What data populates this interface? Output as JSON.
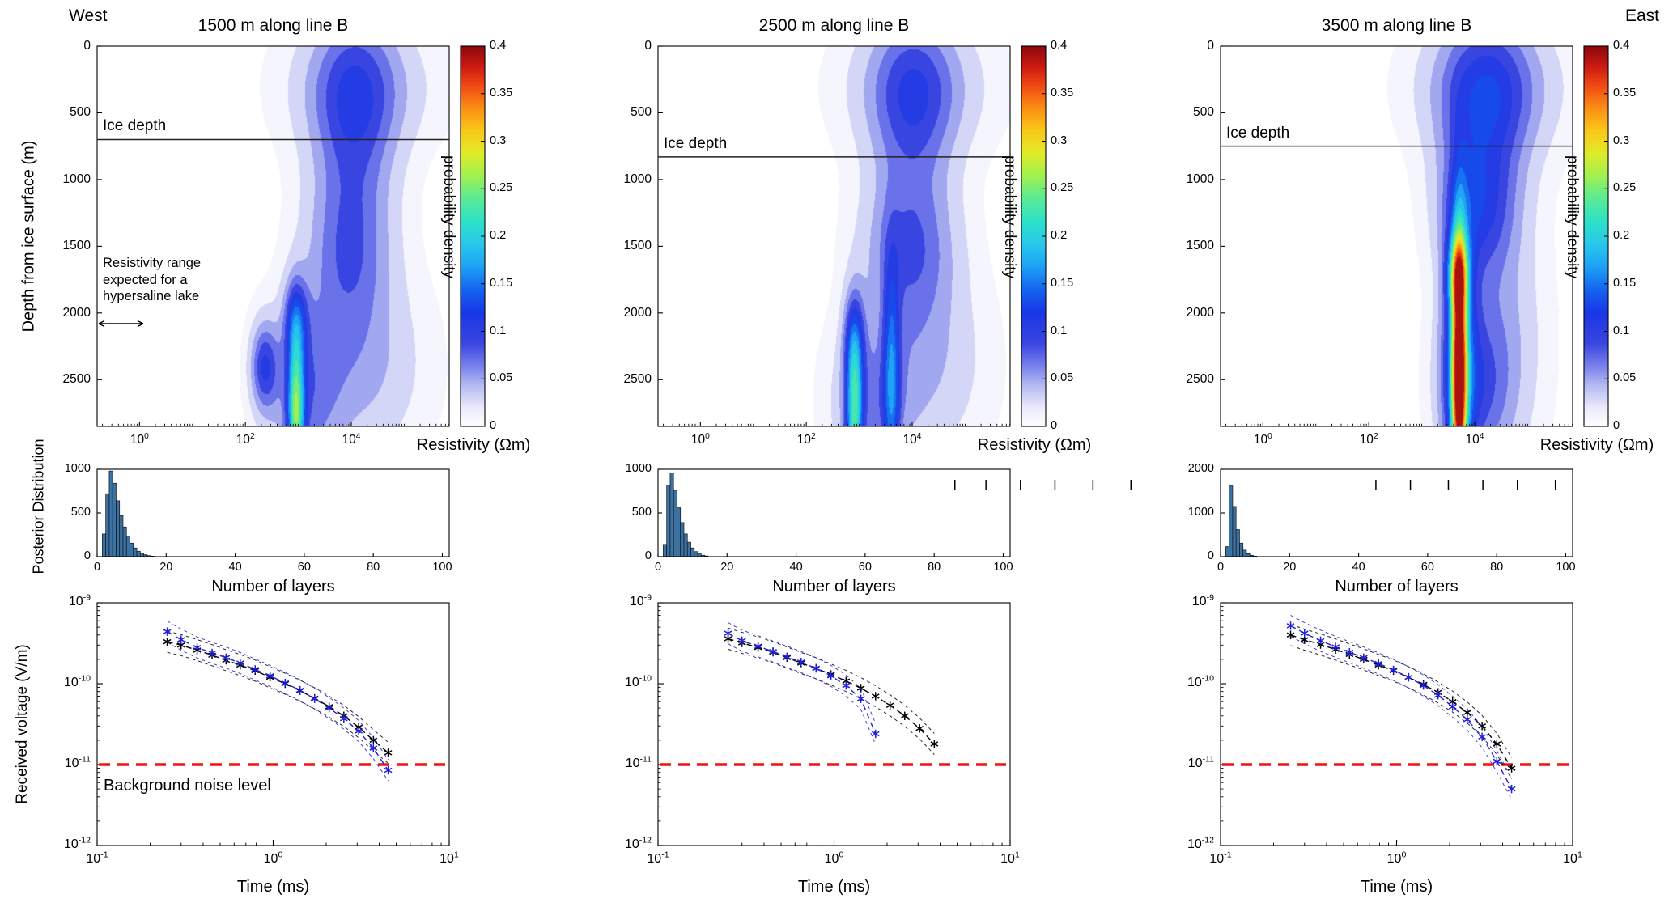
{
  "figure": {
    "west_label": "West",
    "east_label": "East"
  },
  "labels": {
    "depth_axis": "Depth from ice surface (m)",
    "posterior_axis": "Posterior Distribution",
    "voltage_axis": "Received voltage (V/m)",
    "resistivity_xlabel": "Resistivity (Ωm)",
    "colorbar_label": "probability density",
    "layers_xlabel": "Number of layers",
    "time_xlabel": "Time (ms)",
    "ice_label": "Ice depth",
    "noise_label": "Background noise level",
    "lake_annotation": "Resistivity range\nexpected for a\nhypersaline lake"
  },
  "colormap": {
    "max": 0.4,
    "stops": [
      {
        "t": 0.0,
        "c": "#ffffff"
      },
      {
        "t": 0.05,
        "c": "#ebebfa"
      },
      {
        "t": 0.11,
        "c": "#b4b9f2"
      },
      {
        "t": 0.16,
        "c": "#7880eb"
      },
      {
        "t": 0.22,
        "c": "#3a46e1"
      },
      {
        "t": 0.3,
        "c": "#1937e6"
      },
      {
        "t": 0.36,
        "c": "#1464f0"
      },
      {
        "t": 0.42,
        "c": "#1ea0f5"
      },
      {
        "t": 0.48,
        "c": "#28c8eb"
      },
      {
        "t": 0.54,
        "c": "#2de1c8"
      },
      {
        "t": 0.6,
        "c": "#5aeb96"
      },
      {
        "t": 0.66,
        "c": "#a0f050"
      },
      {
        "t": 0.72,
        "c": "#e1eb28"
      },
      {
        "t": 0.78,
        "c": "#fac819"
      },
      {
        "t": 0.84,
        "c": "#fa8c14"
      },
      {
        "t": 0.9,
        "c": "#f04614"
      },
      {
        "t": 0.95,
        "c": "#c81912"
      },
      {
        "t": 1.0,
        "c": "#8c0a0c"
      }
    ]
  },
  "axes": {
    "contour": {
      "x_log_range": [
        -0.8,
        5.85
      ],
      "y_range": [
        0,
        2850
      ],
      "xtick_exponents": [
        0,
        2,
        4
      ],
      "yticks": [
        0,
        500,
        1000,
        1500,
        2000,
        2500
      ]
    },
    "colorbar_ticks": [
      "0",
      "0.05",
      "0.1",
      "0.15",
      "0.2",
      "0.25",
      "0.3",
      "0.35",
      "0.4"
    ],
    "histogram": {
      "x_range": [
        0,
        102
      ],
      "xticks": [
        0,
        20,
        40,
        60,
        80,
        100
      ]
    },
    "decay": {
      "x_log_range": [
        -1,
        1
      ],
      "y_log_range": [
        -12,
        -9
      ],
      "xtick_exponents": [
        -1,
        0,
        1
      ],
      "ytick_exponents": [
        -9,
        -10,
        -11,
        -12
      ],
      "noise_level": 1e-11,
      "noise_color": "#f21111"
    }
  },
  "chart_data": {
    "type": "multi-panel",
    "description": "Bayesian TEM inversion results: resistivity probability density vs depth, posterior number of layers, and received voltage decay curves at three positions along line B",
    "columns": [
      {
        "title": "1500 m along line B",
        "contour": {
          "ice_depth_m": 700,
          "has_lake_annotation": true,
          "blobs": [
            {
              "lx": 4.05,
              "d": 450,
              "sx": 0.55,
              "sy": 520,
              "a": 0.075
            },
            {
              "lx": 4.15,
              "d": 300,
              "sx": 0.95,
              "sy": 350,
              "a": 0.04
            },
            {
              "lx": 3.95,
              "d": 1500,
              "sx": 0.55,
              "sy": 450,
              "a": 0.07
            },
            {
              "lx": 4.1,
              "d": 2400,
              "sx": 0.85,
              "sy": 500,
              "a": 0.045
            },
            {
              "lx": 2.95,
              "d": 2750,
              "sx": 0.11,
              "sy": 420,
              "a": 0.2
            },
            {
              "lx": 2.95,
              "d": 2050,
              "sx": 0.16,
              "sy": 220,
              "a": 0.08
            },
            {
              "lx": 2.35,
              "d": 2400,
              "sx": 0.18,
              "sy": 230,
              "a": 0.09
            },
            {
              "lx": 3.1,
              "d": 2650,
              "sx": 0.45,
              "sy": 450,
              "a": 0.055
            }
          ]
        },
        "histogram": {
          "start_layer": 2,
          "counts": [
            260,
            720,
            980,
            840,
            640,
            470,
            340,
            235,
            155,
            100,
            62,
            38,
            22,
            12,
            6
          ],
          "ymax": 1000,
          "yticks": [
            0,
            500,
            1000
          ],
          "outlier_ticks": []
        },
        "decay": {
          "show_noise_label": true,
          "series": [
            {
              "name": "black-sounding",
              "color": "#000000",
              "t": [
                0.25,
                0.3,
                0.37,
                0.45,
                0.54,
                0.65,
                0.79,
                0.96,
                1.17,
                1.42,
                1.72,
                2.08,
                2.52,
                3.06,
                3.71,
                4.5
              ],
              "v": [
                3.3e-10,
                3e-10,
                2.6e-10,
                2.25e-10,
                1.95e-10,
                1.7e-10,
                1.45e-10,
                1.2e-10,
                1e-10,
                8.2e-11,
                6.6e-11,
                5.2e-11,
                4e-11,
                2.9e-11,
                2e-11,
                1.4e-11
              ]
            },
            {
              "name": "blue-sounding",
              "color": "#1f1fe0",
              "t": [
                0.25,
                0.3,
                0.37,
                0.45,
                0.54,
                0.65,
                0.79,
                0.96,
                1.17,
                1.42,
                1.72,
                2.08,
                2.52,
                3.06,
                3.71,
                4.5
              ],
              "v": [
                4.4e-10,
                3.5e-10,
                2.8e-10,
                2.4e-10,
                2.1e-10,
                1.8e-10,
                1.5e-10,
                1.25e-10,
                1.02e-10,
                8.3e-11,
                6.5e-11,
                5e-11,
                3.7e-11,
                2.6e-11,
                1.6e-11,
                8.5e-12
              ]
            }
          ]
        }
      },
      {
        "title": "2500 m along line B",
        "contour": {
          "ice_depth_m": 830,
          "has_lake_annotation": false,
          "blobs": [
            {
              "lx": 4.0,
              "d": 400,
              "sx": 0.55,
              "sy": 480,
              "a": 0.07
            },
            {
              "lx": 4.1,
              "d": 300,
              "sx": 0.95,
              "sy": 350,
              "a": 0.04
            },
            {
              "lx": 3.95,
              "d": 1500,
              "sx": 0.6,
              "sy": 420,
              "a": 0.075
            },
            {
              "lx": 4.2,
              "d": 2400,
              "sx": 0.8,
              "sy": 500,
              "a": 0.04
            },
            {
              "lx": 2.9,
              "d": 2800,
              "sx": 0.11,
              "sy": 420,
              "a": 0.18
            },
            {
              "lx": 2.9,
              "d": 2200,
              "sx": 0.14,
              "sy": 260,
              "a": 0.08
            },
            {
              "lx": 3.6,
              "d": 2500,
              "sx": 0.11,
              "sy": 600,
              "a": 0.11
            },
            {
              "lx": 3.2,
              "d": 2700,
              "sx": 0.5,
              "sy": 400,
              "a": 0.05
            }
          ]
        },
        "histogram": {
          "start_layer": 2,
          "counts": [
            140,
            820,
            960,
            760,
            560,
            390,
            260,
            165,
            100,
            58,
            32,
            16,
            8
          ],
          "ymax": 1000,
          "yticks": [
            0,
            500,
            1000
          ],
          "outlier_ticks": [
            86,
            95,
            105,
            115,
            126,
            137
          ]
        },
        "decay": {
          "show_noise_label": false,
          "series": [
            {
              "name": "black-sounding",
              "color": "#000000",
              "t": [
                0.25,
                0.3,
                0.37,
                0.45,
                0.54,
                0.65,
                0.79,
                0.96,
                1.17,
                1.42,
                1.72,
                2.08,
                2.52,
                3.06,
                3.71
              ],
              "v": [
                3.6e-10,
                3.2e-10,
                2.8e-10,
                2.45e-10,
                2.1e-10,
                1.8e-10,
                1.55e-10,
                1.3e-10,
                1.08e-10,
                8.8e-11,
                7e-11,
                5.4e-11,
                4e-11,
                2.8e-11,
                1.8e-11
              ]
            },
            {
              "name": "blue-sounding",
              "color": "#1f1fe0",
              "t": [
                0.25,
                0.3,
                0.37,
                0.45,
                0.54,
                0.65,
                0.79,
                0.96,
                1.17,
                1.42,
                1.72
              ],
              "v": [
                4.2e-10,
                3.4e-10,
                2.9e-10,
                2.5e-10,
                2.15e-10,
                1.85e-10,
                1.55e-10,
                1.25e-10,
                9.5e-11,
                6.5e-11,
                2.4e-11
              ]
            }
          ]
        }
      },
      {
        "title": "3500 m along line B",
        "contour": {
          "ice_depth_m": 750,
          "has_lake_annotation": false,
          "blobs": [
            {
              "lx": 4.2,
              "d": 400,
              "sx": 0.6,
              "sy": 480,
              "a": 0.08
            },
            {
              "lx": 4.3,
              "d": 300,
              "sx": 0.95,
              "sy": 350,
              "a": 0.045
            },
            {
              "lx": 4.05,
              "d": 1200,
              "sx": 0.5,
              "sy": 350,
              "a": 0.08
            },
            {
              "lx": 4.35,
              "d": 2200,
              "sx": 0.6,
              "sy": 700,
              "a": 0.05
            },
            {
              "lx": 3.7,
              "d": 2500,
              "sx": 0.1,
              "sy": 750,
              "a": 0.3
            },
            {
              "lx": 3.7,
              "d": 2300,
              "sx": 0.22,
              "sy": 700,
              "a": 0.12
            },
            {
              "lx": 3.68,
              "d": 1700,
              "sx": 0.14,
              "sy": 200,
              "a": 0.14
            },
            {
              "lx": 4.0,
              "d": 2600,
              "sx": 0.45,
              "sy": 400,
              "a": 0.05
            }
          ]
        },
        "histogram": {
          "start_layer": 2,
          "counts": [
            230,
            1620,
            1150,
            620,
            310,
            150,
            70,
            30,
            12
          ],
          "ymax": 2000,
          "yticks": [
            0,
            1000,
            2000
          ],
          "outlier_ticks": [
            45,
            55,
            66,
            76,
            86,
            97
          ]
        },
        "decay": {
          "show_noise_label": false,
          "series": [
            {
              "name": "black-sounding",
              "color": "#000000",
              "t": [
                0.25,
                0.3,
                0.37,
                0.45,
                0.54,
                0.65,
                0.79,
                0.96,
                1.17,
                1.42,
                1.72,
                2.08,
                2.52,
                3.06,
                3.71,
                4.5
              ],
              "v": [
                4e-10,
                3.5e-10,
                3.05e-10,
                2.65e-10,
                2.3e-10,
                2e-10,
                1.7e-10,
                1.45e-10,
                1.2e-10,
                9.8e-11,
                7.8e-11,
                6e-11,
                4.4e-11,
                3e-11,
                1.8e-11,
                9e-12
              ]
            },
            {
              "name": "blue-sounding",
              "color": "#1f1fe0",
              "t": [
                0.25,
                0.3,
                0.37,
                0.45,
                0.54,
                0.65,
                0.79,
                0.96,
                1.17,
                1.42,
                1.72,
                2.08,
                2.52,
                3.06,
                3.71,
                4.5
              ],
              "v": [
                5.2e-10,
                4.2e-10,
                3.4e-10,
                2.85e-10,
                2.45e-10,
                2.1e-10,
                1.78e-10,
                1.48e-10,
                1.2e-10,
                9.5e-11,
                7.2e-11,
                5.2e-11,
                3.6e-11,
                2.2e-11,
                1.1e-11,
                5e-12
              ]
            }
          ]
        }
      }
    ]
  }
}
